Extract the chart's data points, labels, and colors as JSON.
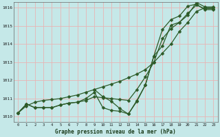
{
  "title": "Graphe pression niveau de la mer (hPa)",
  "background_color": "#c5e8e8",
  "grid_color": "#e8b4b4",
  "line_color": "#2d5a27",
  "ylim": [
    1009.7,
    1016.3
  ],
  "xlim": [
    -0.5,
    23.5
  ],
  "yticks": [
    1010,
    1011,
    1012,
    1013,
    1014,
    1015,
    1016
  ],
  "xticks": [
    0,
    1,
    2,
    3,
    4,
    5,
    6,
    7,
    8,
    9,
    10,
    11,
    12,
    13,
    14,
    15,
    16,
    17,
    18,
    19,
    20,
    21,
    22,
    23
  ],
  "series1": {
    "x": [
      0,
      1,
      2,
      3,
      4,
      5,
      6,
      7,
      8,
      9,
      10,
      11,
      12,
      13,
      14,
      15,
      16,
      17,
      18,
      19,
      20,
      21,
      22,
      23
    ],
    "y": [
      1010.2,
      1010.6,
      1010.8,
      1010.9,
      1010.95,
      1011.0,
      1011.1,
      1011.2,
      1011.35,
      1011.5,
      1011.65,
      1011.8,
      1011.95,
      1012.15,
      1012.35,
      1012.6,
      1013.0,
      1013.5,
      1014.0,
      1014.7,
      1015.2,
      1015.8,
      1016.0,
      1016.0
    ]
  },
  "series2": {
    "x": [
      0,
      1,
      2,
      3,
      4,
      5,
      6,
      7,
      8,
      9,
      10,
      11,
      12,
      13,
      14,
      15,
      16,
      17,
      18,
      19,
      20,
      21,
      22,
      23
    ],
    "y": [
      1010.2,
      1010.7,
      1010.5,
      1010.5,
      1010.5,
      1010.65,
      1010.75,
      1010.8,
      1010.9,
      1011.1,
      1011.05,
      1011.0,
      1010.95,
      1010.9,
      1011.5,
      1012.2,
      1013.0,
      1014.3,
      1014.85,
      1015.2,
      1015.7,
      1016.15,
      1015.95,
      1015.95
    ]
  },
  "series3": {
    "x": [
      0,
      1,
      2,
      3,
      4,
      5,
      6,
      7,
      8,
      9,
      10,
      11,
      12,
      13,
      14,
      15,
      16,
      17,
      18,
      19,
      20,
      21,
      22,
      23
    ],
    "y": [
      1010.2,
      1010.7,
      1010.5,
      1010.5,
      1010.5,
      1010.65,
      1010.75,
      1010.8,
      1011.0,
      1011.35,
      1010.5,
      1010.35,
      1010.3,
      1010.15,
      1010.85,
      1011.75,
      1013.35,
      1014.8,
      1015.35,
      1015.55,
      1016.1,
      1016.2,
      1015.9,
      1015.9
    ]
  },
  "series4": {
    "x": [
      9,
      10,
      11,
      12,
      13,
      14,
      15,
      16,
      17,
      18,
      19,
      20,
      21,
      22,
      23
    ],
    "y": [
      1011.5,
      1011.1,
      1010.85,
      1010.45,
      1010.15,
      1010.9,
      1011.75,
      1013.35,
      1013.9,
      1015.05,
      1015.2,
      1015.6,
      1016.3,
      1016.05,
      1016.05
    ]
  }
}
